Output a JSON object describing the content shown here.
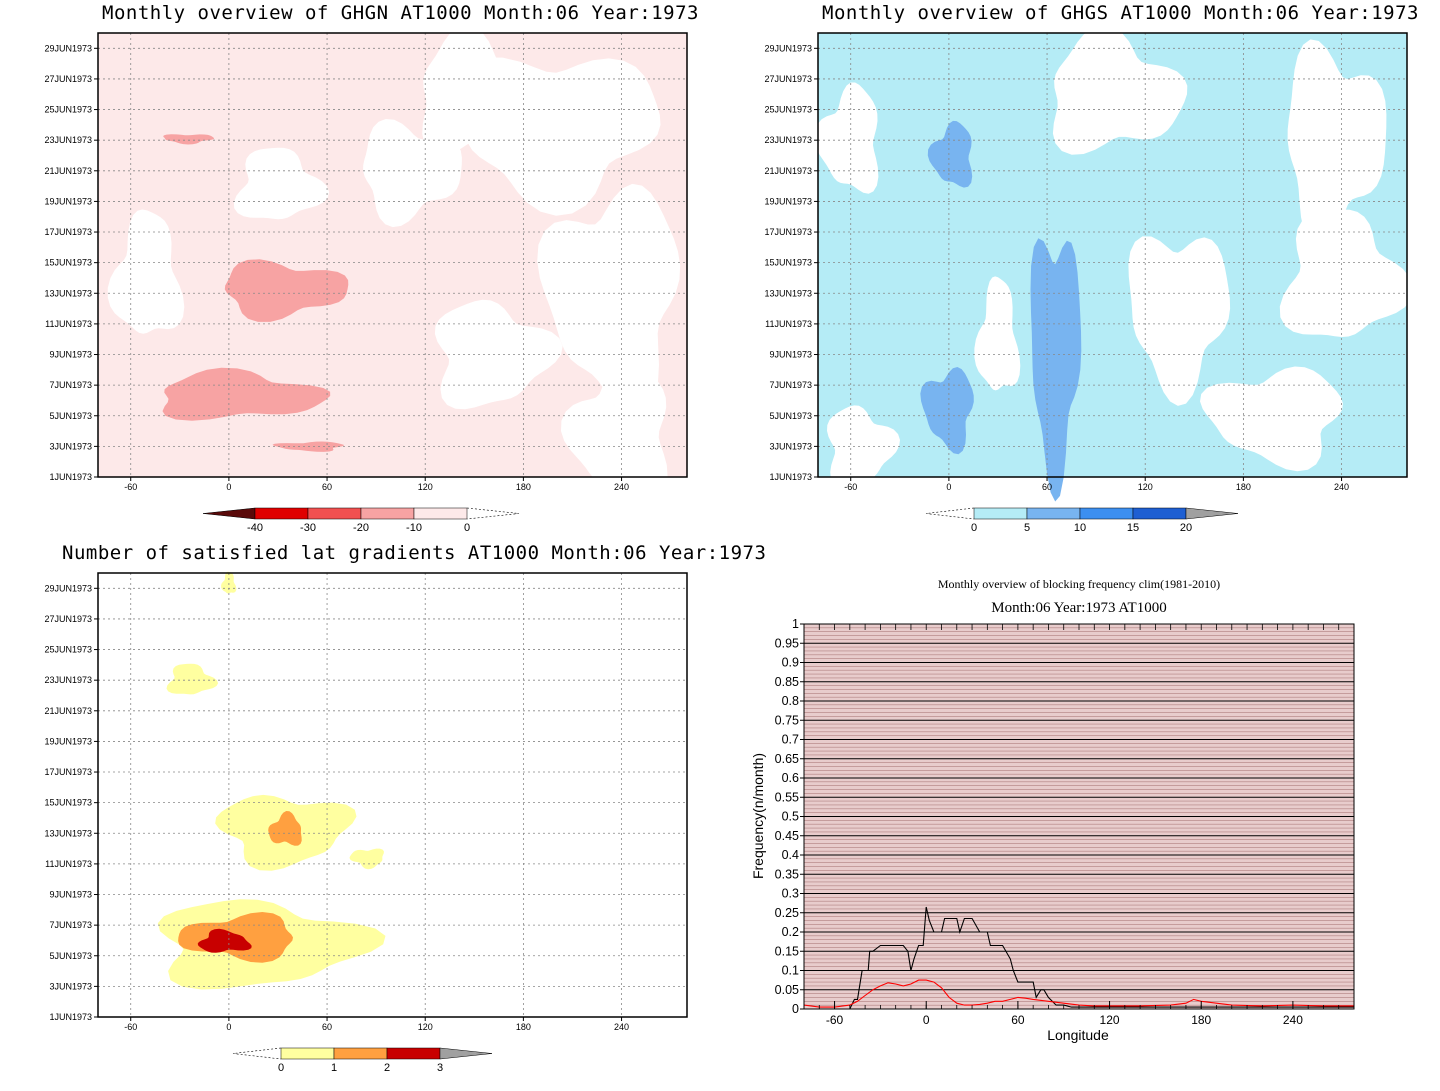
{
  "chart_data": [
    {
      "type": "heatmap",
      "title": "Monthly overview of GHGN AT1000 Month:06 Year:1973",
      "x_ticks": [
        "-60",
        "0",
        "60",
        "120",
        "180",
        "240"
      ],
      "xlim": [
        -80,
        280
      ],
      "y_ticks": [
        "1JUN1973",
        "3JUN1973",
        "5JUN1973",
        "7JUN1973",
        "9JUN1973",
        "11JUN1973",
        "13JUN1973",
        "15JUN1973",
        "17JUN1973",
        "19JUN1973",
        "21JUN1973",
        "23JUN1973",
        "25JUN1973",
        "27JUN1973",
        "29JUN1973"
      ],
      "colorbar": {
        "labels": [
          "-40",
          "-30",
          "-20",
          "-10",
          "0"
        ],
        "colors": [
          "#5a0a0a",
          "#e00000",
          "#f25050",
          "#f7a3a3",
          "#fde9e9"
        ]
      },
      "background_color": "#fde9e9",
      "filled_regions": [
        {
          "value_range": "0 to -10",
          "lon": [
            -70,
            270
          ],
          "days": [
            1,
            30
          ],
          "color": "#fde9e9"
        },
        {
          "value_range": "-10 to -20",
          "lon": [
            -45,
            55
          ],
          "days": [
            4.8,
            7.8
          ],
          "color": "#f7a3a3"
        },
        {
          "value_range": "-10 to -20",
          "lon": [
            -5,
            70
          ],
          "days": [
            11.5,
            15.0
          ],
          "color": "#f7a3a3"
        },
        {
          "value_range": "-10 to -20",
          "lon": [
            -40,
            -10
          ],
          "days": [
            22.8,
            23.4
          ],
          "color": "#f7a3a3"
        },
        {
          "value_range": "-10 to -20",
          "lon": [
            30,
            70
          ],
          "days": [
            2.7,
            3.3
          ],
          "color": "#f7a3a3"
        }
      ]
    },
    {
      "type": "heatmap",
      "title": "Monthly overview of GHGS AT1000 Month:06 Year:1973",
      "x_ticks": [
        "-60",
        "0",
        "60",
        "120",
        "180",
        "240"
      ],
      "xlim": [
        -80,
        280
      ],
      "y_ticks": [
        "1JUN1973",
        "3JUN1973",
        "5JUN1973",
        "7JUN1973",
        "9JUN1973",
        "11JUN1973",
        "13JUN1973",
        "15JUN1973",
        "17JUN1973",
        "19JUN1973",
        "21JUN1973",
        "23JUN1973",
        "25JUN1973",
        "27JUN1973",
        "29JUN1973"
      ],
      "colorbar": {
        "labels": [
          "0",
          "5",
          "10",
          "15",
          "20"
        ],
        "colors": [
          "#b5ecf6",
          "#78b4f0",
          "#3c8ff0",
          "#1e5fd2",
          "#a0a0a0"
        ]
      },
      "background_color": "#b5ecf6",
      "filled_regions": [
        {
          "value_range": "5 to 10",
          "lon": [
            50,
            80
          ],
          "days": [
            1.5,
            17.0
          ],
          "color": "#78b4f0"
        },
        {
          "value_range": "5 to 10",
          "lon": [
            -15,
            15
          ],
          "days": [
            3.0,
            8.0
          ],
          "color": "#78b4f0"
        },
        {
          "value_range": "5 to 10",
          "lon": [
            -10,
            15
          ],
          "days": [
            20.0,
            24.0
          ],
          "color": "#78b4f0"
        }
      ]
    },
    {
      "type": "heatmap",
      "title": "Number of satisfied lat gradients AT1000 Month:06 Year:1973",
      "x_ticks": [
        "-60",
        "0",
        "60",
        "120",
        "180",
        "240"
      ],
      "xlim": [
        -80,
        280
      ],
      "y_ticks": [
        "1JUN1973",
        "3JUN1973",
        "5JUN1973",
        "7JUN1973",
        "9JUN1973",
        "11JUN1973",
        "13JUN1973",
        "15JUN1973",
        "17JUN1973",
        "19JUN1973",
        "21JUN1973",
        "23JUN1973",
        "25JUN1973",
        "27JUN1973",
        "29JUN1973"
      ],
      "colorbar": {
        "labels": [
          "0",
          "1",
          "2",
          "3"
        ],
        "colors": [
          "#ffffa0",
          "#ffa040",
          "#c80000",
          "#a0a0a0"
        ]
      },
      "background_color": "#ffffff",
      "filled_regions": [
        {
          "value_range": "0 to 1",
          "lon": [
            -4,
            4
          ],
          "days": [
            28.6,
            30.0
          ],
          "color": "#ffffa0"
        },
        {
          "value_range": "0 to 1",
          "lon": [
            -37,
            -10
          ],
          "days": [
            22.0,
            24.0
          ],
          "color": "#ffffa0"
        },
        {
          "value_range": "0 to 1",
          "lon": [
            -45,
            80
          ],
          "days": [
            3.0,
            8.5
          ],
          "color": "#ffffa0"
        },
        {
          "value_range": "0 to 1",
          "lon": [
            -5,
            72
          ],
          "days": [
            11.0,
            15.5
          ],
          "color": "#ffffa0"
        },
        {
          "value_range": "0 to 1",
          "lon": [
            75,
            95
          ],
          "days": [
            10.8,
            12.0
          ],
          "color": "#ffffa0"
        },
        {
          "value_range": "1 to 2",
          "lon": [
            -28,
            42
          ],
          "days": [
            4.8,
            7.6
          ],
          "color": "#ffa040"
        },
        {
          "value_range": "1 to 2",
          "lon": [
            25,
            45
          ],
          "days": [
            12.2,
            14.2
          ],
          "color": "#ffa040"
        },
        {
          "value_range": "2 to 3",
          "lon": [
            -18,
            12
          ],
          "days": [
            5.2,
            6.6
          ],
          "color": "#c80000"
        }
      ]
    },
    {
      "type": "line",
      "title": "Monthly overview of blocking frequency clim(1981-2010)",
      "subtitle": "Month:06 Year:1973  AT1000",
      "xlabel": "Longitude",
      "ylabel": "Frequency(n/month)",
      "xlim": [
        -80,
        280
      ],
      "ylim": [
        0,
        1
      ],
      "x_ticks": [
        "-60",
        "0",
        "60",
        "120",
        "180",
        "240"
      ],
      "y_ticks": [
        "0",
        "0.05",
        "0.1",
        "0.15",
        "0.2",
        "0.25",
        "0.3",
        "0.35",
        "0.4",
        "0.45",
        "0.5",
        "0.55",
        "0.6",
        "0.65",
        "0.7",
        "0.75",
        "0.8",
        "0.85",
        "0.9",
        "0.95",
        "1"
      ],
      "series": [
        {
          "color": "#000000",
          "x": [
            -80,
            -50,
            -47,
            -45,
            -42,
            -38,
            -37,
            -35,
            -30,
            -25,
            -20,
            -15,
            -12,
            -10,
            -8,
            -5,
            -2,
            0,
            2,
            5,
            8,
            10,
            12,
            15,
            17,
            20,
            22,
            25,
            27,
            30,
            35,
            40,
            42,
            45,
            50,
            55,
            57,
            60,
            62,
            65,
            70,
            72,
            75,
            77,
            80,
            85,
            90,
            95,
            100,
            150,
            200,
            240,
            280
          ],
          "y": [
            0,
            0,
            0.025,
            0.025,
            0.1,
            0.1,
            0.15,
            0.15,
            0.165,
            0.165,
            0.165,
            0.165,
            0.15,
            0.1,
            0.13,
            0.165,
            0.165,
            0.265,
            0.23,
            0.2,
            0.2,
            0.2,
            0.235,
            0.235,
            0.235,
            0.235,
            0.2,
            0.235,
            0.235,
            0.235,
            0.2,
            0.2,
            0.165,
            0.165,
            0.165,
            0.13,
            0.1,
            0.07,
            0.07,
            0.07,
            0.07,
            0.03,
            0.05,
            0.05,
            0.03,
            0.01,
            0.01,
            0.005,
            0.005,
            0.005,
            0.005,
            0.005,
            0.005
          ]
        },
        {
          "color": "#ff0000",
          "x": [
            -80,
            -70,
            -60,
            -50,
            -45,
            -40,
            -35,
            -30,
            -25,
            -20,
            -15,
            -10,
            -5,
            0,
            5,
            10,
            15,
            20,
            25,
            30,
            35,
            40,
            45,
            50,
            55,
            60,
            65,
            70,
            80,
            90,
            100,
            110,
            120,
            140,
            160,
            170,
            175,
            180,
            190,
            200,
            220,
            240,
            260,
            280
          ],
          "y": [
            0.01,
            0.005,
            0.005,
            0.01,
            0.02,
            0.035,
            0.05,
            0.06,
            0.068,
            0.065,
            0.06,
            0.065,
            0.075,
            0.075,
            0.07,
            0.055,
            0.03,
            0.015,
            0.01,
            0.01,
            0.012,
            0.015,
            0.02,
            0.02,
            0.025,
            0.03,
            0.028,
            0.025,
            0.02,
            0.015,
            0.01,
            0.008,
            0.008,
            0.008,
            0.01,
            0.015,
            0.025,
            0.02,
            0.015,
            0.01,
            0.008,
            0.01,
            0.008,
            0.008
          ]
        }
      ]
    }
  ]
}
